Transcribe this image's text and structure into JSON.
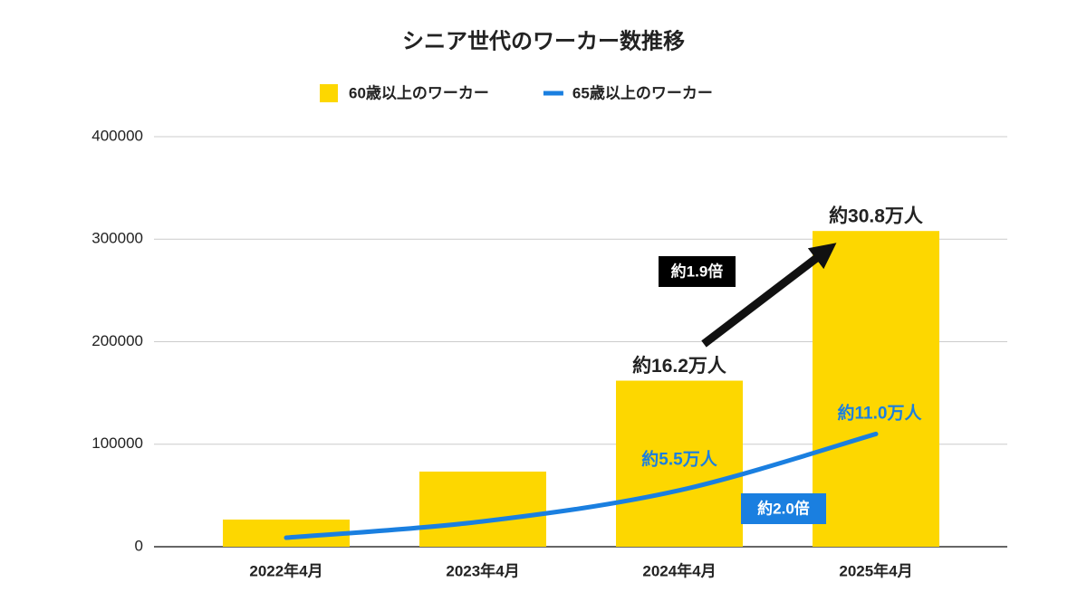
{
  "chart_data": {
    "type": "bar",
    "title": "シニア世代のワーカー数推移",
    "categories": [
      "2022年4月",
      "2023年4月",
      "2024年4月",
      "2025年4月"
    ],
    "series": [
      {
        "name": "60歳以上のワーカー",
        "type": "bar",
        "color": "#fdd700",
        "values": [
          26500,
          73300,
          162000,
          308000
        ],
        "value_labels": [
          null,
          null,
          "約16.2万人",
          "約30.8万人"
        ]
      },
      {
        "name": "65歳以上のワーカー",
        "type": "line",
        "color": "#1a7fe0",
        "values": [
          8800,
          24700,
          55000,
          110000
        ],
        "value_labels": [
          null,
          null,
          "約5.5万人",
          "約11.0万人"
        ]
      }
    ],
    "ylim": [
      0,
      400000
    ],
    "yticks": [
      0,
      100000,
      200000,
      300000,
      400000
    ],
    "grid": true,
    "legend": "top",
    "annotations": [
      {
        "text": "約1.9倍",
        "color": "#000000"
      },
      {
        "text": "約2.0倍",
        "color": "#1a7fe0"
      }
    ]
  }
}
